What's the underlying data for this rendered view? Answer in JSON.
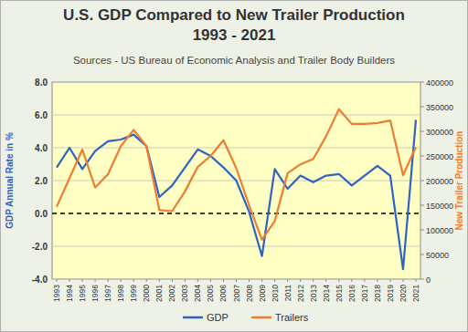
{
  "chart_data": {
    "type": "line",
    "title": "U.S. GDP Compared to New Trailer Production\n1993 - 2021",
    "subtitle": "Sources - US Bureau of Economic Analysis and Trailer Body Builders",
    "ylabel": "GDP Annual Rate in %",
    "y2label": "New Trailer Production",
    "categories": [
      "1993",
      "1994",
      "1995",
      "1996",
      "1997",
      "1998",
      "1999",
      "2000",
      "2001",
      "2002",
      "2003",
      "2004",
      "2005",
      "2006",
      "2007",
      "2008",
      "2009",
      "2010",
      "2011",
      "2012",
      "2013",
      "2014",
      "2015",
      "2016",
      "2017",
      "2018",
      "2019",
      "2020",
      "2021"
    ],
    "series": [
      {
        "name": "GDP",
        "color": "#2e62c4",
        "values": [
          2.8,
          4.0,
          2.7,
          3.8,
          4.4,
          4.5,
          4.8,
          4.1,
          1.0,
          1.7,
          2.8,
          3.9,
          3.5,
          2.8,
          2.0,
          0.1,
          -2.6,
          2.7,
          1.5,
          2.3,
          1.9,
          2.3,
          2.4,
          1.7,
          2.3,
          2.9,
          2.3,
          -3.4,
          5.7
        ]
      },
      {
        "name": "Trailers",
        "color": "#ed7d31",
        "axis": "y2",
        "values": [
          147000,
          205000,
          263000,
          186000,
          213000,
          270000,
          303000,
          270000,
          140000,
          138000,
          178000,
          228000,
          250000,
          282000,
          225000,
          150000,
          80000,
          118000,
          215000,
          233000,
          244000,
          290000,
          345000,
          315000,
          315000,
          317000,
          322000,
          211000,
          268000
        ]
      }
    ],
    "ylim": [
      -4,
      8
    ],
    "yticks": [
      {
        "value": -4,
        "label": "-4.0"
      },
      {
        "value": -2,
        "label": "-2.0"
      },
      {
        "value": 0,
        "label": "0.0"
      },
      {
        "value": 2,
        "label": "2.0"
      },
      {
        "value": 4,
        "label": "4.0"
      },
      {
        "value": 6,
        "label": "6.0"
      },
      {
        "value": 8,
        "label": "8.0"
      }
    ],
    "y2lim": [
      0,
      400000
    ],
    "y2ticks": [
      0,
      50000,
      100000,
      150000,
      200000,
      250000,
      300000,
      350000,
      400000
    ],
    "grid": true,
    "legend": "bottom"
  }
}
